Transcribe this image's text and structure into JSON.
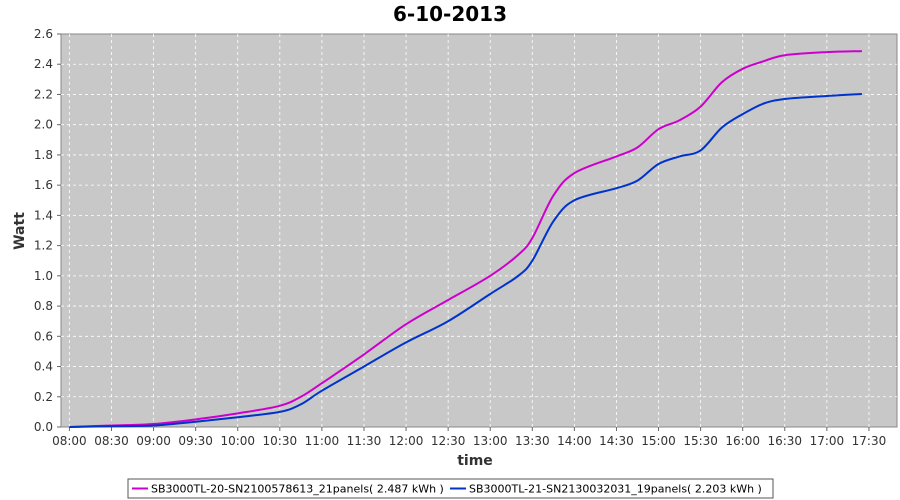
{
  "chart_data": {
    "type": "line",
    "title": "6-10-2013",
    "xlabel": "time",
    "ylabel": "Watt",
    "xlim": [
      "07:54",
      "17:50"
    ],
    "ylim": [
      0,
      2.6
    ],
    "yticks": [
      0.0,
      0.2,
      0.4,
      0.6,
      0.8,
      1.0,
      1.2,
      1.4,
      1.6,
      1.8,
      2.0,
      2.2,
      2.4,
      2.6
    ],
    "xticks": [
      "08:00",
      "08:30",
      "09:00",
      "09:30",
      "10:00",
      "10:30",
      "11:00",
      "11:30",
      "12:00",
      "12:30",
      "13:00",
      "13:30",
      "14:00",
      "14:30",
      "15:00",
      "15:30",
      "16:00",
      "16:30",
      "17:00",
      "17:30"
    ],
    "grid": true,
    "legend_position": "bottom",
    "background": "#c8c8c8",
    "series": [
      {
        "name": "SB3000TL-20-SN2100578613_21panels( 2.487 kWh )",
        "color": "#cc00cc",
        "x": [
          "08:00",
          "08:30",
          "09:00",
          "09:30",
          "10:00",
          "10:30",
          "10:45",
          "11:00",
          "11:30",
          "12:00",
          "12:30",
          "13:00",
          "13:20",
          "13:30",
          "13:45",
          "14:00",
          "14:30",
          "14:45",
          "15:00",
          "15:15",
          "15:30",
          "15:45",
          "16:00",
          "16:15",
          "16:30",
          "17:00",
          "17:25"
        ],
        "y": [
          0.0,
          0.01,
          0.02,
          0.05,
          0.09,
          0.14,
          0.2,
          0.29,
          0.48,
          0.68,
          0.84,
          1.0,
          1.14,
          1.25,
          1.53,
          1.68,
          1.79,
          1.85,
          1.97,
          2.03,
          2.12,
          2.28,
          2.37,
          2.42,
          2.46,
          2.48,
          2.487
        ]
      },
      {
        "name": "SB3000TL-21-SN2130032031_19panels( 2.203 kWh )",
        "color": "#0033cc",
        "x": [
          "08:00",
          "08:30",
          "09:00",
          "09:30",
          "10:00",
          "10:30",
          "10:45",
          "11:00",
          "11:30",
          "12:00",
          "12:30",
          "13:00",
          "13:20",
          "13:30",
          "13:45",
          "14:00",
          "14:30",
          "14:45",
          "15:00",
          "15:15",
          "15:30",
          "15:45",
          "16:00",
          "16:15",
          "16:30",
          "17:00",
          "17:25"
        ],
        "y": [
          0.0,
          0.005,
          0.01,
          0.035,
          0.065,
          0.1,
          0.15,
          0.24,
          0.4,
          0.56,
          0.7,
          0.88,
          1.0,
          1.1,
          1.36,
          1.5,
          1.58,
          1.63,
          1.74,
          1.79,
          1.83,
          1.98,
          2.07,
          2.14,
          2.17,
          2.19,
          2.203
        ]
      }
    ]
  }
}
